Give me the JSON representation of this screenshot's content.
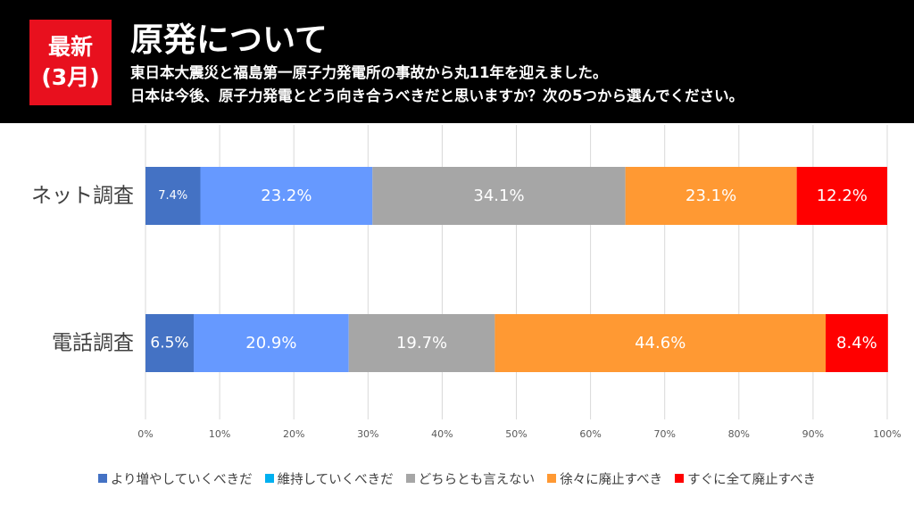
{
  "badge": {
    "line1": "最新",
    "line2": "(3月)"
  },
  "header": {
    "title": "原発について",
    "subtitle_line1": "東日本大震災と福島第一原子力発電所の事故から丸11年を迎えました。",
    "subtitle_line2": "日本は今後、原子力発電とどう向き合うべきだと思いますか？次の5つから選んでください。"
  },
  "colors": {
    "badge": "#e8101e",
    "header_bg": "#000000"
  },
  "chart_data": {
    "type": "bar",
    "orientation": "horizontal-stacked-100",
    "categories": [
      "ネット調査",
      "電話調査"
    ],
    "series": [
      {
        "name": "より増やしていくべきだ",
        "color": "#4472c4",
        "legend_color": "#4472c4",
        "values": [
          7.4,
          6.5
        ],
        "labels": [
          "7.4%",
          "6.5%"
        ]
      },
      {
        "name": "維持していくべきだ",
        "color": "#6699ff",
        "legend_color": "#00b0f0",
        "values": [
          23.2,
          20.9
        ],
        "labels": [
          "23.2%",
          "20.9%"
        ]
      },
      {
        "name": "どちらとも言えない",
        "color": "#a6a6a6",
        "legend_color": "#a6a6a6",
        "values": [
          34.1,
          19.7
        ],
        "labels": [
          "34.1%",
          "19.7%"
        ]
      },
      {
        "name": "徐々に廃止すべき",
        "color": "#ff9933",
        "legend_color": "#ff9933",
        "values": [
          23.1,
          44.6
        ],
        "labels": [
          "23.1%",
          "44.6%"
        ]
      },
      {
        "name": "すぐに全て廃止すべき",
        "color": "#ff0000",
        "legend_color": "#ff0000",
        "values": [
          12.2,
          8.4
        ],
        "labels": [
          "12.2%",
          "8.4%"
        ]
      }
    ],
    "xlim": [
      0,
      100
    ],
    "x_ticks": [
      "0%",
      "10%",
      "20%",
      "30%",
      "40%",
      "50%",
      "60%",
      "70%",
      "80%",
      "90%",
      "100%"
    ],
    "grid": true,
    "legend_position": "bottom"
  }
}
